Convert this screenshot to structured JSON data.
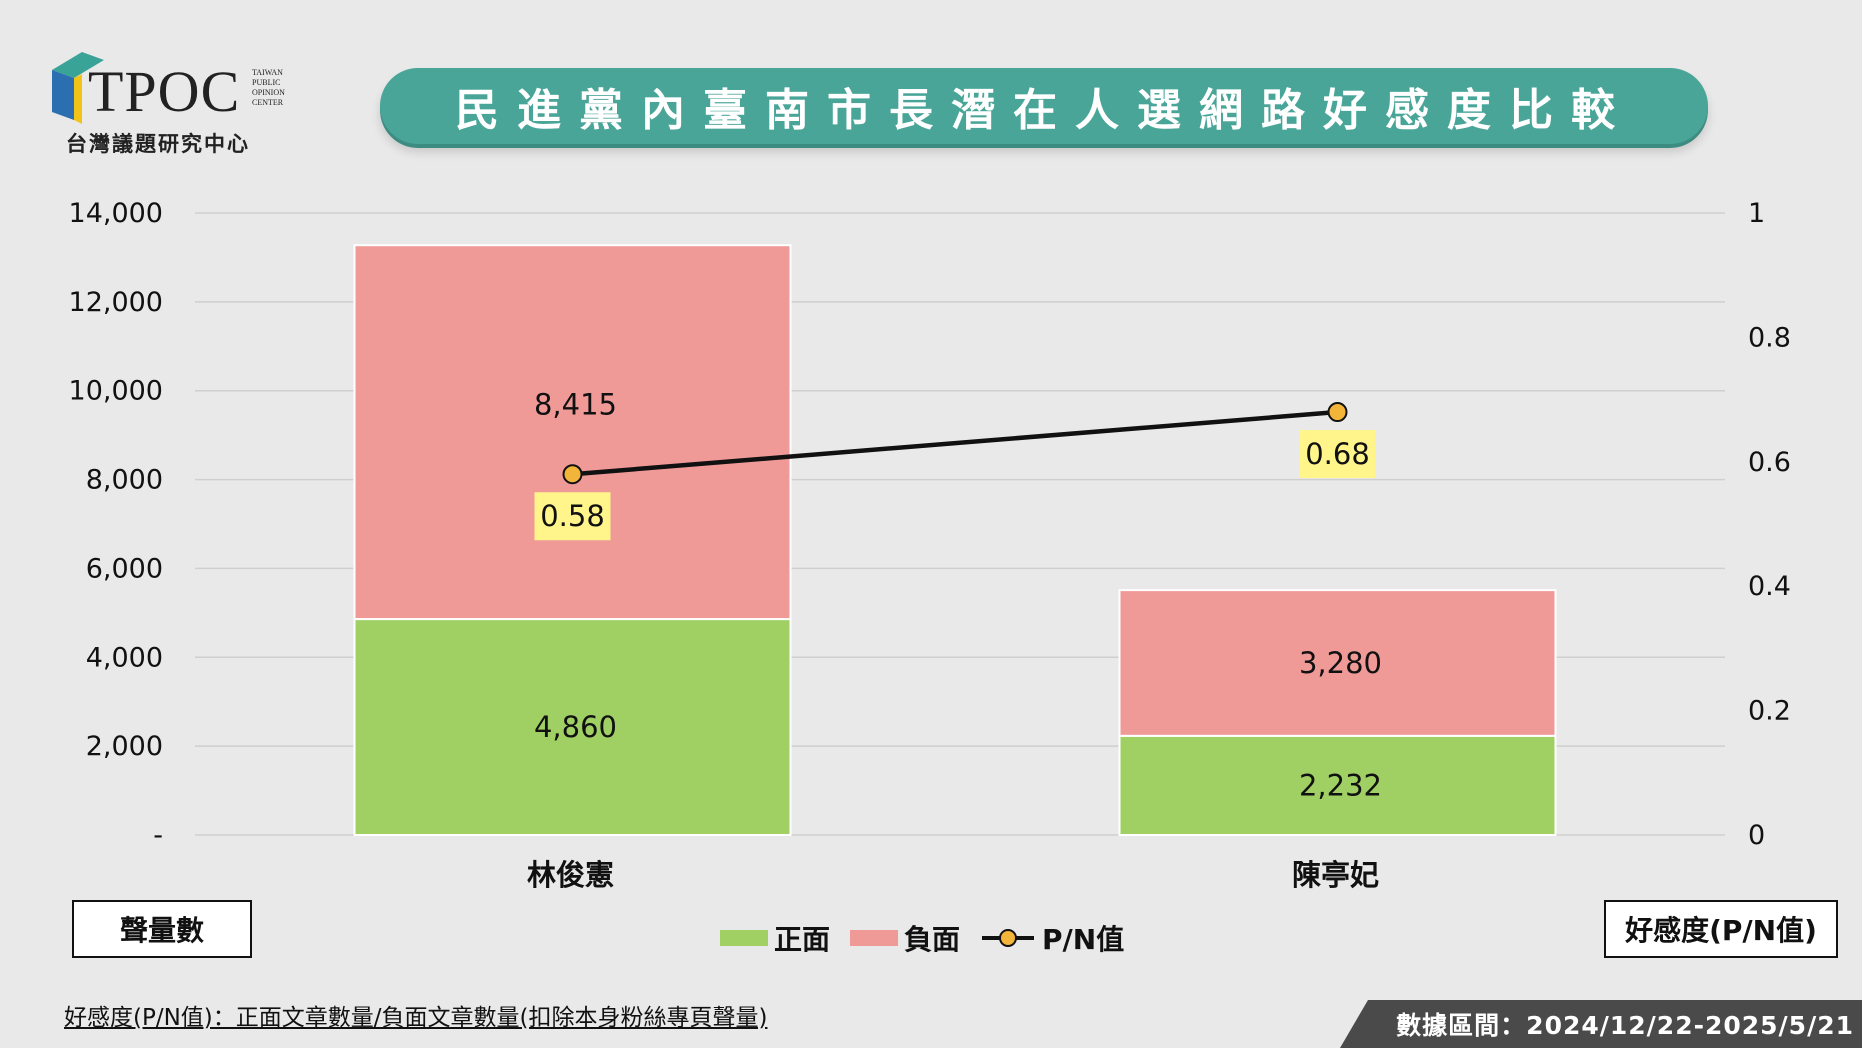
{
  "logo": {
    "text": "TPOC",
    "small": [
      "TAIWAN",
      "PUBLIC",
      "OPINION",
      "CENTER"
    ],
    "sub": "台灣議題研究中心"
  },
  "colors": {
    "positive": "#a0d064",
    "negative": "#f09a98",
    "line": "#111111",
    "marker": "#f2b53a",
    "label_bg": "#fff58a",
    "title_bg": "#4aa599"
  },
  "chart_data": {
    "type": "bar",
    "title": "民進黨內臺南市長潛在人選網路好感度比較",
    "categories": [
      "林俊憲",
      "陳亭妃"
    ],
    "series": [
      {
        "name": "正面",
        "type": "bar",
        "stacked": true,
        "axis": "left",
        "values": [
          4860,
          2232
        ],
        "labels": [
          "4,860",
          "2,232"
        ]
      },
      {
        "name": "負面",
        "type": "bar",
        "stacked": true,
        "axis": "left",
        "values": [
          8415,
          3280
        ],
        "labels": [
          "8,415",
          "3,280"
        ]
      },
      {
        "name": "P/N值",
        "type": "line",
        "axis": "right",
        "values": [
          0.58,
          0.68
        ],
        "labels": [
          "0.58",
          "0.68"
        ]
      }
    ],
    "y_left": {
      "label": "聲量數",
      "ylim": [
        0,
        14000
      ],
      "ticks": [
        0,
        2000,
        4000,
        6000,
        8000,
        10000,
        12000,
        14000
      ],
      "tick_labels": [
        "-",
        "2,000",
        "4,000",
        "6,000",
        "8,000",
        "10,000",
        "12,000",
        "14,000"
      ]
    },
    "y_right": {
      "label": "好感度(P/N值)",
      "ylim": [
        0,
        1
      ],
      "ticks": [
        0,
        0.2,
        0.4,
        0.6,
        0.8,
        1
      ],
      "tick_labels": [
        "0",
        "0.2",
        "0.4",
        "0.6",
        "0.8",
        "1"
      ]
    },
    "grid": true,
    "legend_position": "bottom"
  },
  "footnote": "好感度(P/N值)：正面文章數量/負面文章數量(扣除本身粉絲專頁聲量)",
  "date_range": "數據區間：2024/12/22-2025/5/21"
}
